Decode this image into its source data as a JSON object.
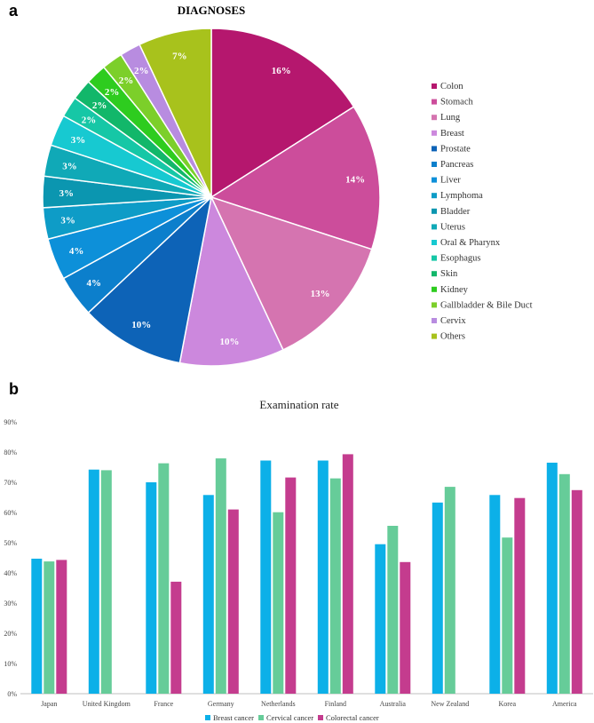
{
  "panels": {
    "a": "a",
    "b": "b"
  },
  "chart_data": [
    {
      "type": "pie",
      "title": "DIAGNOSES",
      "slices": [
        {
          "label": "Colon",
          "value": 16,
          "display": "16%",
          "color": "#B5176E"
        },
        {
          "label": "Stomach",
          "value": 14,
          "display": "14%",
          "color": "#CC4D9B"
        },
        {
          "label": "Lung",
          "value": 13,
          "display": "13%",
          "color": "#D574B0"
        },
        {
          "label": "Breast",
          "value": 10,
          "display": "10%",
          "color": "#CC88DD"
        },
        {
          "label": "Prostate",
          "value": 10,
          "display": "10%",
          "color": "#0D63B7"
        },
        {
          "label": "Pancreas",
          "value": 4,
          "display": "4%",
          "color": "#0C7FCC"
        },
        {
          "label": "Liver",
          "value": 4,
          "display": "4%",
          "color": "#0D90D9"
        },
        {
          "label": "Lymphoma",
          "value": 3,
          "display": "3%",
          "color": "#0E9CC7"
        },
        {
          "label": "Bladder",
          "value": 3,
          "display": "3%",
          "color": "#0B96B0"
        },
        {
          "label": "Uterus",
          "value": 3,
          "display": "3%",
          "color": "#10A9B7"
        },
        {
          "label": "Oral & Pharynx",
          "value": 3,
          "display": "3%",
          "color": "#17C9D1"
        },
        {
          "label": "Esophagus",
          "value": 2,
          "display": "2%",
          "color": "#16C7A6"
        },
        {
          "label": "Skin",
          "value": 2,
          "display": "2%",
          "color": "#12B76A"
        },
        {
          "label": "Kidney",
          "value": 2,
          "display": "2%",
          "color": "#2ECC1F"
        },
        {
          "label": "Gallbladder & Bile Duct",
          "value": 2,
          "display": "2%",
          "color": "#7CCF2A"
        },
        {
          "label": "Cervix",
          "value": 2,
          "display": "2%",
          "color": "#B88CE0"
        },
        {
          "label": "Others",
          "value": 7,
          "display": "7%",
          "color": "#A8C21C"
        }
      ],
      "legend_position": "right"
    },
    {
      "type": "bar",
      "title": "Examination rate",
      "categories": [
        "Japan",
        "United Kingdom",
        "France",
        "Germany",
        "Netherlands",
        "Finland",
        "Australia",
        "New Zealand",
        "Korea",
        "America"
      ],
      "series": [
        {
          "name": "Breast cancer",
          "color": "#0CB0E8",
          "values": [
            44.7,
            74.2,
            70.0,
            65.8,
            77.2,
            77.2,
            49.5,
            63.3,
            65.8,
            76.5
          ]
        },
        {
          "name": "Cervical cancer",
          "color": "#66CC99",
          "values": [
            43.8,
            74.0,
            76.3,
            77.9,
            60.1,
            71.3,
            55.6,
            68.5,
            51.7,
            72.7
          ]
        },
        {
          "name": "Colorectal cancer",
          "color": "#C43C8E",
          "values": [
            44.3,
            null,
            37.1,
            61.0,
            71.6,
            79.3,
            43.6,
            null,
            64.8,
            67.4
          ]
        }
      ],
      "yticks": [
        "0%",
        "10%",
        "20%",
        "30%",
        "40%",
        "50%",
        "60%",
        "70%",
        "80%",
        "90%"
      ],
      "ylim": [
        0,
        90
      ],
      "legend_position": "bottom",
      "grid": false
    }
  ]
}
